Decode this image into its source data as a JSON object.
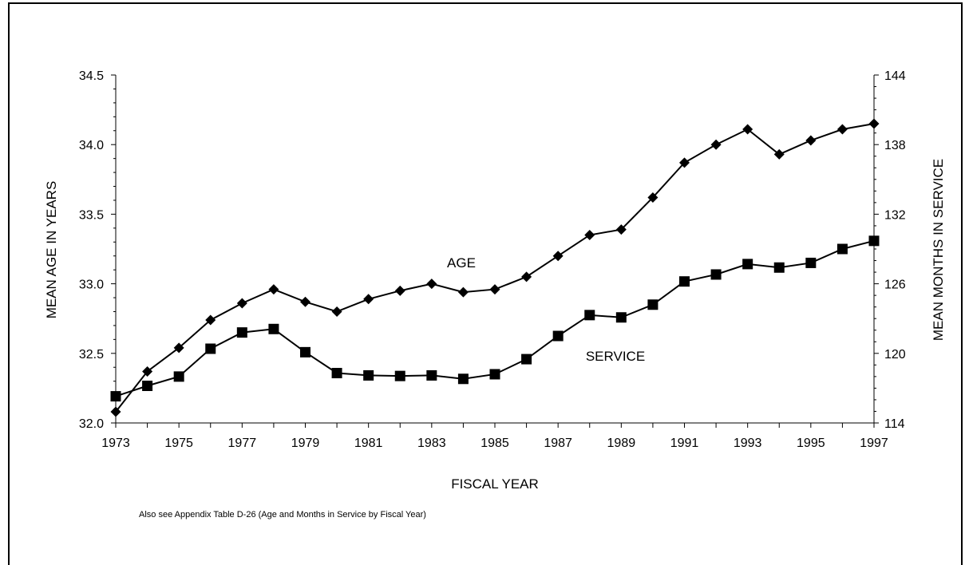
{
  "chart_data": {
    "type": "line",
    "x": [
      1973,
      1974,
      1975,
      1976,
      1977,
      1978,
      1979,
      1980,
      1981,
      1982,
      1983,
      1984,
      1985,
      1986,
      1987,
      1988,
      1989,
      1990,
      1991,
      1992,
      1993,
      1994,
      1995,
      1996,
      1997
    ],
    "x_tick_labels": [
      "1973",
      "1975",
      "1977",
      "1979",
      "1981",
      "1983",
      "1985",
      "1987",
      "1989",
      "1991",
      "1993",
      "1995",
      "1997"
    ],
    "xlabel": "FISCAL YEAR",
    "ylabel_left": "MEAN AGE IN YEARS",
    "ylabel_right": "MEAN MONTHS IN SERVICE",
    "ylim_left": [
      32.0,
      34.5
    ],
    "ylim_right": [
      114,
      144
    ],
    "y_tick_labels_left": [
      "32.0",
      "32.5",
      "33.0",
      "33.5",
      "34.0",
      "34.5"
    ],
    "y_tick_labels_right": [
      "114",
      "120",
      "126",
      "132",
      "138",
      "144"
    ],
    "series": [
      {
        "name": "AGE",
        "axis": "left",
        "marker": "diamond",
        "values": [
          32.08,
          32.37,
          32.54,
          32.74,
          32.86,
          32.96,
          32.87,
          32.8,
          32.89,
          32.95,
          33.0,
          32.94,
          32.96,
          33.05,
          33.2,
          33.35,
          33.39,
          33.62,
          33.87,
          34.0,
          34.11,
          33.93,
          34.03,
          34.11,
          34.15
        ]
      },
      {
        "name": "SERVICE",
        "axis": "right",
        "marker": "square",
        "values": [
          116.3,
          117.2,
          118.0,
          120.4,
          121.8,
          122.1,
          120.1,
          118.3,
          118.1,
          118.05,
          118.1,
          117.8,
          118.2,
          119.5,
          121.5,
          123.3,
          123.1,
          124.2,
          126.2,
          126.8,
          127.7,
          127.4,
          127.8,
          129.0,
          129.7
        ]
      }
    ],
    "legend": "none",
    "grid": false
  },
  "note": "Also see Appendix Table D-26 (Age and Months in Service by Fiscal Year)"
}
